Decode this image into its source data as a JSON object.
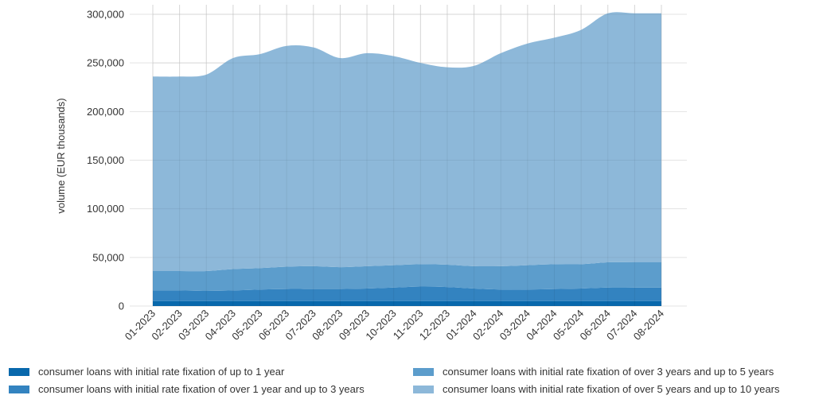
{
  "chart_data": {
    "type": "area",
    "stacked": true,
    "title": "",
    "xlabel": "",
    "ylabel": "volume (EUR thousands)",
    "ylim": [
      0,
      300000
    ],
    "yticks": [
      0,
      50000,
      100000,
      150000,
      200000,
      250000,
      300000
    ],
    "ytick_labels": [
      "0",
      "50,000",
      "100,000",
      "150,000",
      "200,000",
      "250,000",
      "300,000"
    ],
    "grid": true,
    "legend_position": "bottom",
    "categories": [
      "01-2023",
      "02-2023",
      "03-2023",
      "04-2023",
      "05-2023",
      "06-2023",
      "07-2023",
      "08-2023",
      "09-2023",
      "10-2023",
      "11-2023",
      "12-2023",
      "01-2024",
      "02-2024",
      "03-2024",
      "04-2024",
      "05-2024",
      "06-2024",
      "07-2024",
      "08-2024"
    ],
    "series": [
      {
        "name": "consumer loans with initial rate fixation of up to 1 year",
        "color": "#0868ac",
        "values": [
          5000,
          5000,
          5000,
          5000,
          5000,
          5000,
          5000,
          5000,
          5000,
          5000,
          5000,
          5000,
          5000,
          5000,
          5000,
          5000,
          5000,
          5000,
          5000,
          5000
        ]
      },
      {
        "name": "consumer loans with initial rate fixation of over 1 year and up to 3 years",
        "color": "#3383c0",
        "values": [
          11000,
          11000,
          10500,
          11000,
          12000,
          12500,
          12500,
          12500,
          13000,
          14000,
          15000,
          14500,
          13000,
          12000,
          12000,
          12500,
          13000,
          14000,
          14000,
          14000
        ]
      },
      {
        "name": "consumer loans with initial rate fixation of over 3 years and up to 5 years",
        "color": "#5c9dcc",
        "values": [
          20000,
          20000,
          20500,
          22000,
          22000,
          23000,
          23500,
          22500,
          23000,
          23000,
          23000,
          23000,
          23000,
          24000,
          25000,
          25500,
          25000,
          26000,
          26000,
          26000
        ]
      },
      {
        "name": "consumer loans with initial rate fixation of over 5 years and up to 10 years",
        "color": "#8db8d9",
        "values": [
          200000,
          200000,
          202000,
          217000,
          220000,
          227000,
          225000,
          215000,
          219000,
          215000,
          207000,
          203000,
          206000,
          219000,
          228000,
          233000,
          241000,
          256000,
          256000,
          256000
        ]
      }
    ]
  }
}
